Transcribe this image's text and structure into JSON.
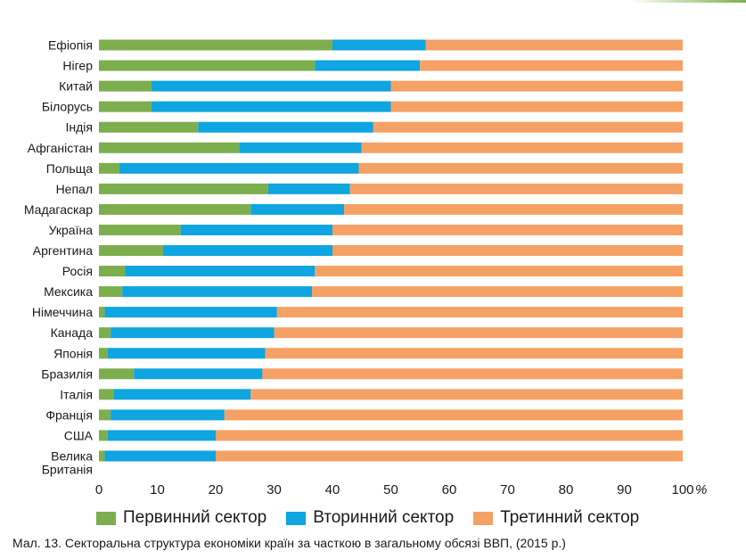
{
  "chart_data": {
    "type": "bar",
    "orientation": "horizontal",
    "stacked": true,
    "categories": [
      "Ефіопія",
      "Нігер",
      "Китай",
      "Білорусь",
      "Індія",
      "Афганістан",
      "Польща",
      "Непал",
      "Мадагаскар",
      "Україна",
      "Аргентина",
      "Росія",
      "Мексика",
      "Німеччина",
      "Канада",
      "Японія",
      "Бразилія",
      "Італія",
      "Франція",
      "США",
      "Велика Британія"
    ],
    "category_lines": [
      [
        "Ефіопія"
      ],
      [
        "Нігер"
      ],
      [
        "Китай"
      ],
      [
        "Білорусь"
      ],
      [
        "Індія"
      ],
      [
        "Афганістан"
      ],
      [
        "Польща"
      ],
      [
        "Непал"
      ],
      [
        "Мадагаскар"
      ],
      [
        "Україна"
      ],
      [
        "Аргентина"
      ],
      [
        "Росія"
      ],
      [
        "Мексика"
      ],
      [
        "Німеччина"
      ],
      [
        "Канада"
      ],
      [
        "Японія"
      ],
      [
        "Бразилія"
      ],
      [
        "Італія"
      ],
      [
        "Франція"
      ],
      [
        "США"
      ],
      [
        "Велика",
        "Британія"
      ]
    ],
    "series": [
      {
        "name": "Первинний сектор",
        "color": "#7cae4e",
        "values": [
          40,
          37,
          9,
          9,
          17,
          24,
          3.5,
          29,
          26,
          14,
          11,
          4.5,
          4,
          1,
          2,
          1.5,
          6,
          2.5,
          2,
          1.5,
          1
        ]
      },
      {
        "name": "Вторинний сектор",
        "color": "#0ea5e0",
        "values": [
          16,
          18,
          41,
          41,
          30,
          21,
          41,
          14,
          16,
          26,
          29,
          32.5,
          32.5,
          29.5,
          28,
          27,
          22,
          23.5,
          19.5,
          18.5,
          19
        ]
      },
      {
        "name": "Третинний сектор",
        "color": "#f5a165",
        "values": [
          44,
          45,
          50,
          50,
          53,
          55,
          55.5,
          57,
          58,
          60,
          60,
          63,
          63.5,
          69.5,
          70,
          71.5,
          72,
          74,
          78.5,
          80,
          80
        ]
      }
    ],
    "x_ticks": [
      0,
      10,
      20,
      30,
      40,
      50,
      60,
      70,
      80,
      90,
      100
    ],
    "x_unit": "%",
    "xlim": [
      0,
      100
    ],
    "grid": false,
    "legend_position": "bottom"
  },
  "caption": "Мал. 13. Секторальна структура економіки країн за часткою в загальному обсязі ВВП, (2015 р.)"
}
